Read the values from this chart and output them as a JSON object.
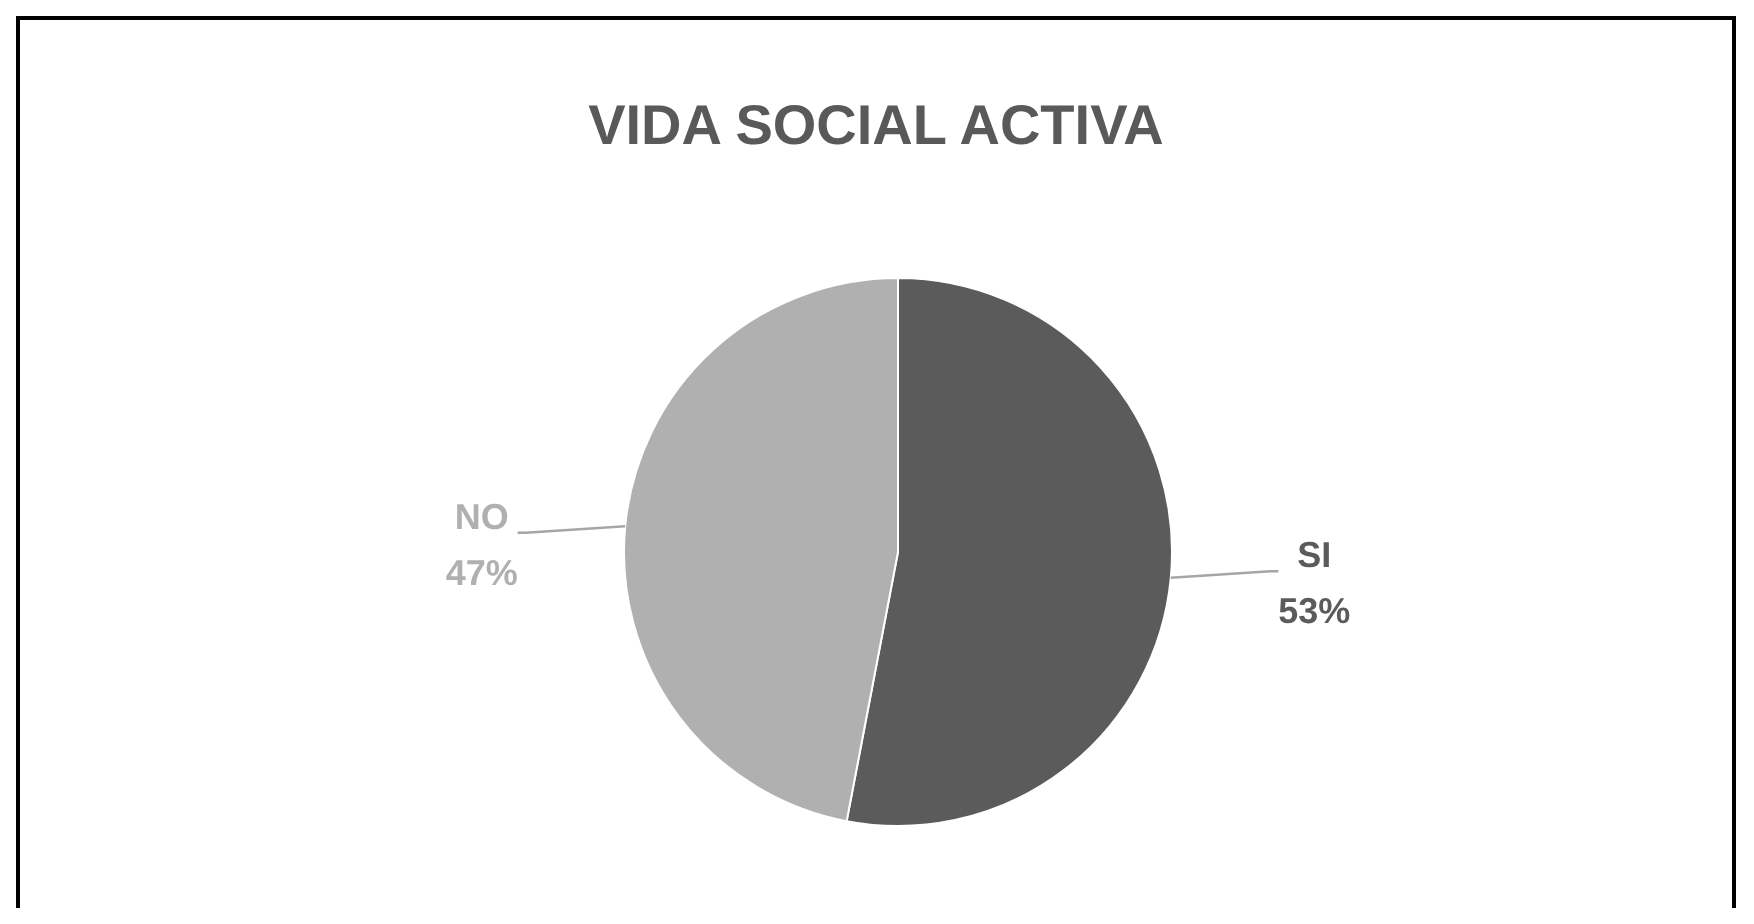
{
  "chart_data": {
    "type": "pie",
    "title": "VIDA SOCIAL ACTIVA",
    "categories": [
      "SI",
      "NO"
    ],
    "values": [
      53,
      47
    ],
    "colors": [
      "#5b5b5b",
      "#b0b0b0"
    ],
    "value_labels": [
      "53%",
      "47%"
    ]
  }
}
